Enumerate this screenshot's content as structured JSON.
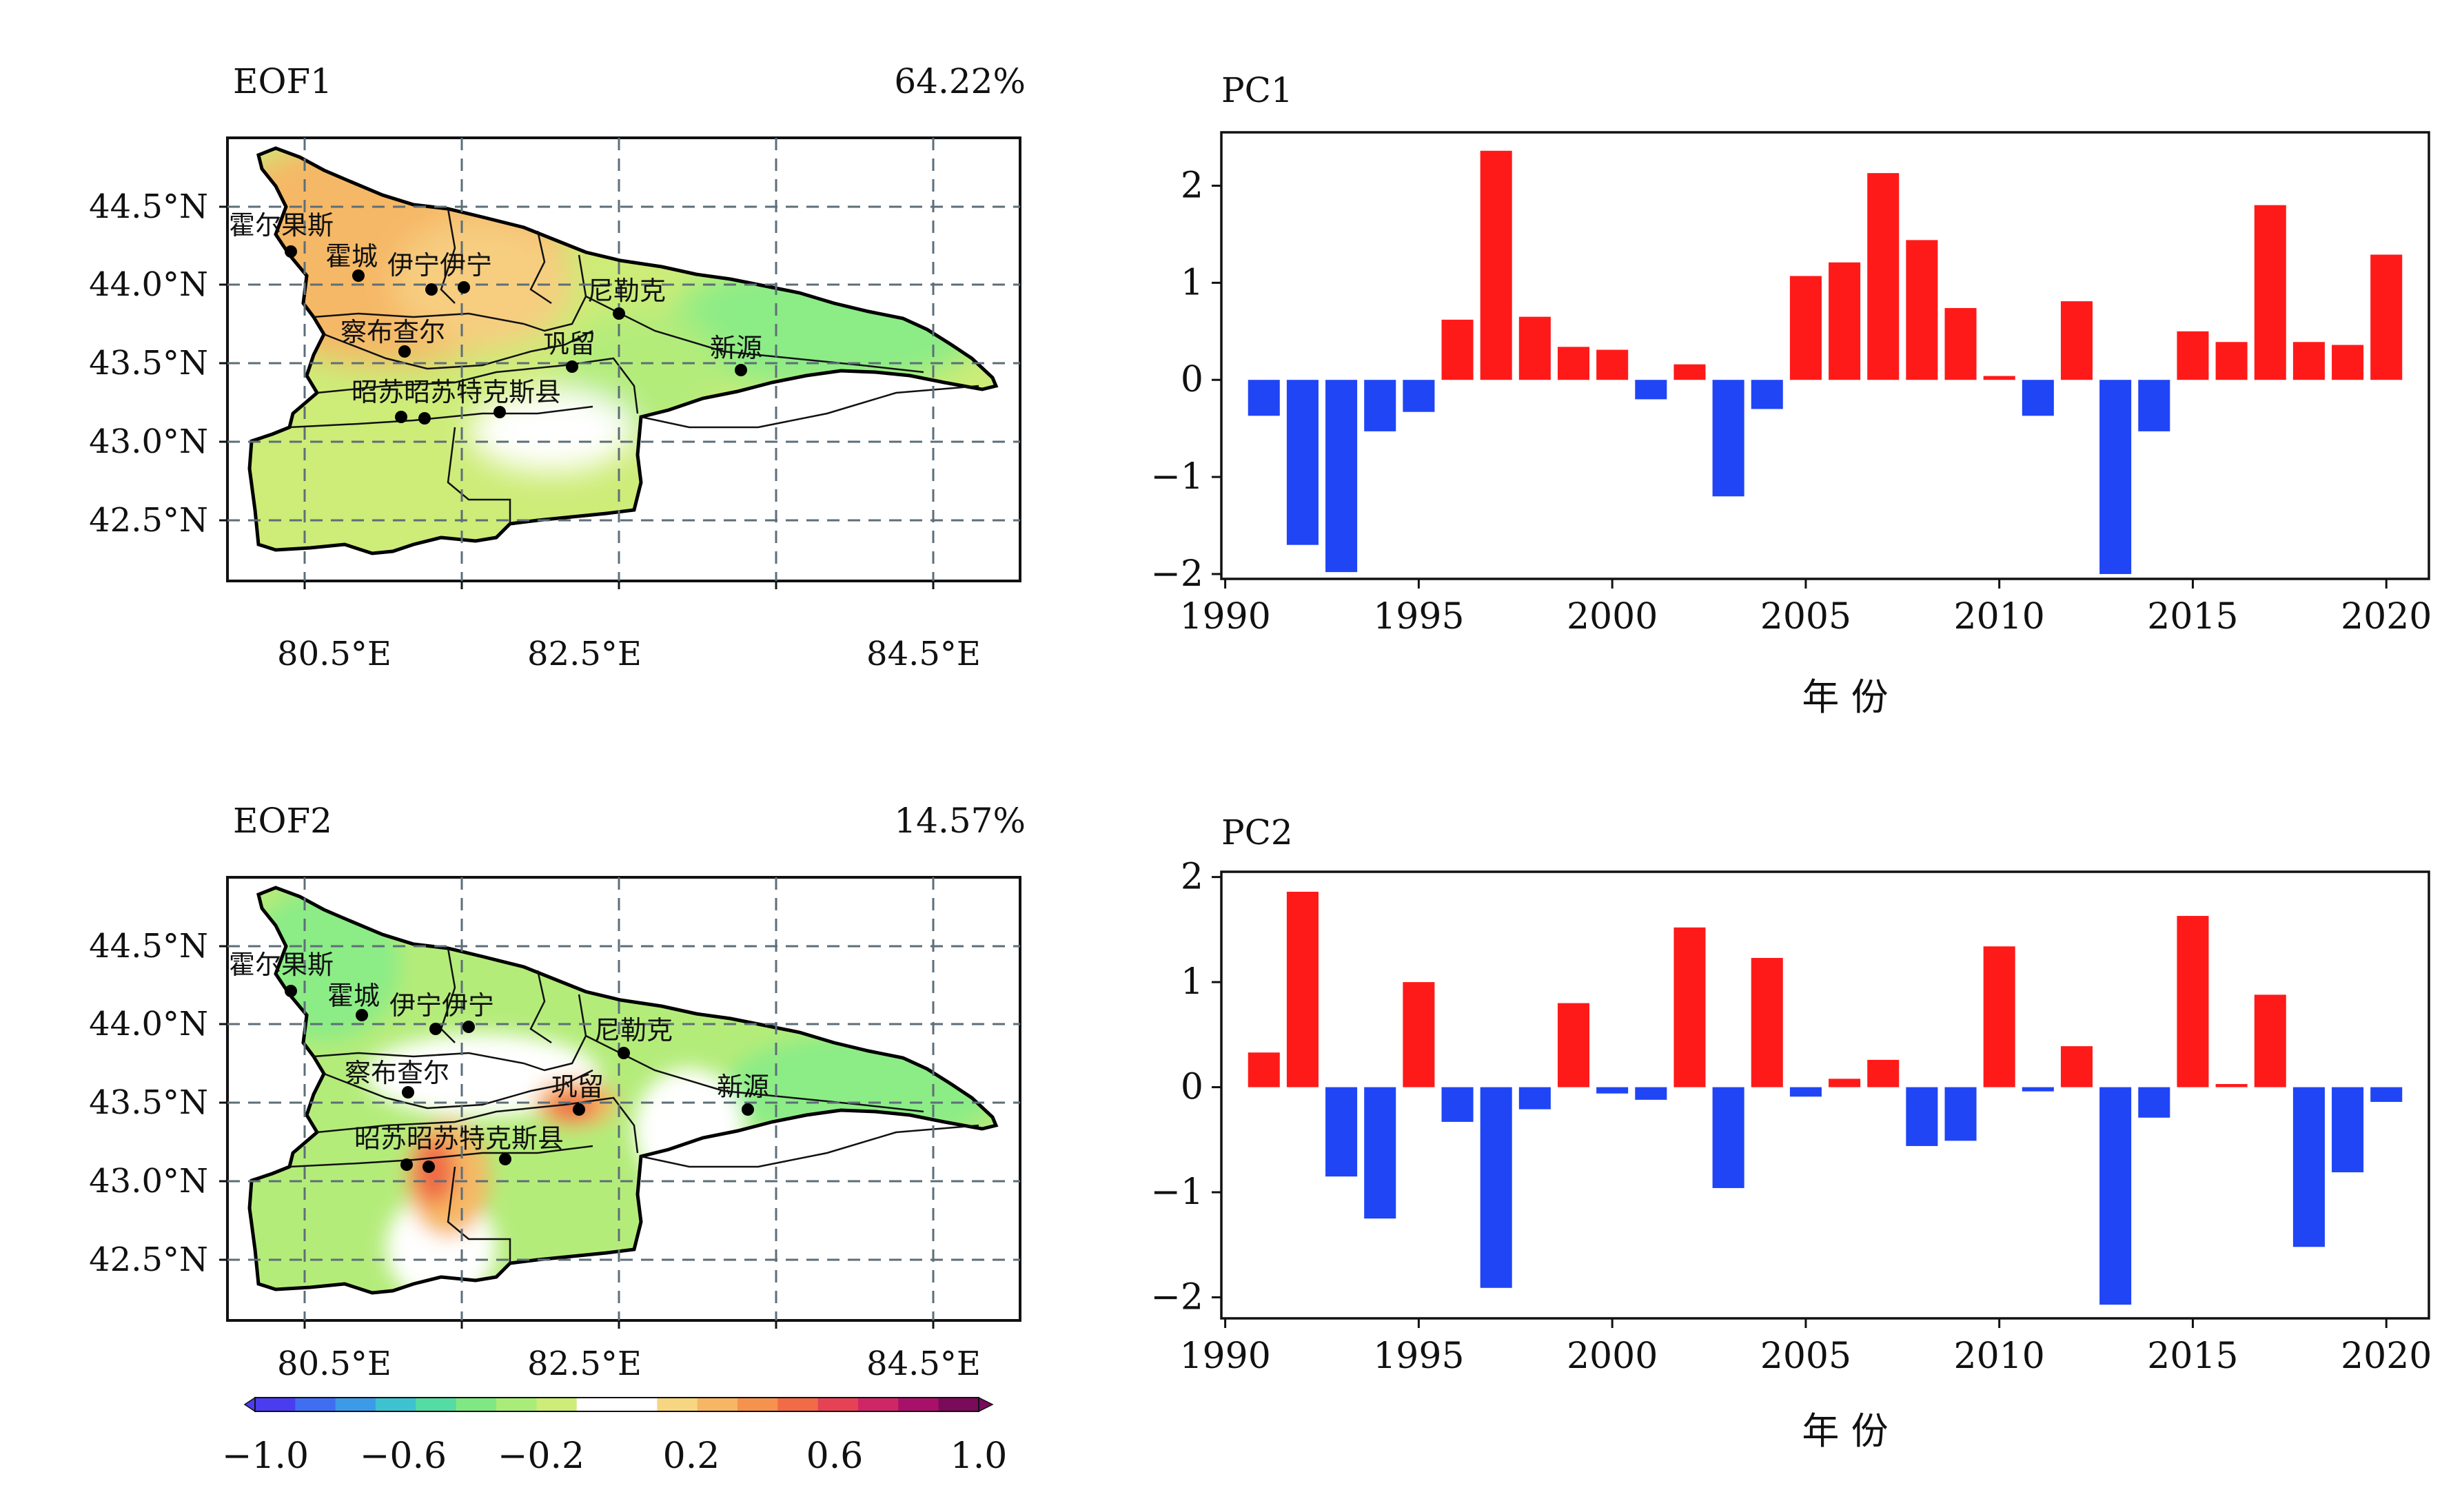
{
  "colorbar": {
    "tick_labels": [
      "−1.0",
      "−0.6",
      "−0.2",
      "0.2",
      "0.6",
      "1.0"
    ],
    "colors": [
      "#4a3df0",
      "#3f6ef2",
      "#3c9be8",
      "#3fc2cf",
      "#54dca4",
      "#7fe882",
      "#a9ec7a",
      "#cdec78",
      "#ffffff",
      "#ffffff",
      "#f6d680",
      "#f7b664",
      "#f5924d",
      "#f06b46",
      "#e54256",
      "#cf2667",
      "#a8106a",
      "#7a0a5a"
    ]
  },
  "maps": [
    {
      "title": "EOF1",
      "variance": "64.22%",
      "lat_ticks": [
        "44.5°N",
        "44.0°N",
        "43.5°N",
        "43.0°N",
        "42.5°N"
      ],
      "lon_ticks": [
        "80.5°E",
        "82.5°E",
        "84.5°E"
      ],
      "stations": [
        {
          "name": "霍尔果斯"
        },
        {
          "name": "霍城"
        },
        {
          "name": "伊宁伊宁"
        },
        {
          "name": "察布查尔"
        },
        {
          "name": "尼勒克"
        },
        {
          "name": "巩留"
        },
        {
          "name": "新源"
        },
        {
          "name": "昭苏昭苏特克斯县"
        }
      ],
      "fill_colors": {
        "west": "#f5b866",
        "north_mid": "#f7cd80",
        "east": "#8cec86",
        "east_mid": "#b4ec7a",
        "south": "#cdec78"
      }
    },
    {
      "title": "EOF2",
      "variance": "14.57%",
      "lat_ticks": [
        "44.5°N",
        "44.0°N",
        "43.5°N",
        "43.0°N",
        "42.5°N"
      ],
      "lon_ticks": [
        "80.5°E",
        "82.5°E",
        "84.5°E"
      ],
      "stations": [
        {
          "name": "霍尔果斯"
        },
        {
          "name": "霍城"
        },
        {
          "name": "伊宁伊宁"
        },
        {
          "name": "察布查尔"
        },
        {
          "name": "尼勒克"
        },
        {
          "name": "巩留"
        },
        {
          "name": "新源"
        },
        {
          "name": "昭苏昭苏特克斯县"
        }
      ],
      "fill_colors": {
        "base": "#b4ec7a",
        "green": "#8cec86",
        "hot": "#ef6a46",
        "warm": "#f6b865"
      }
    }
  ],
  "chart_data": [
    {
      "type": "bar",
      "title": "PC1",
      "xlabel": "年 份",
      "ylabel": "",
      "x": [
        1991,
        1992,
        1993,
        1994,
        1995,
        1996,
        1997,
        1998,
        1999,
        2000,
        2001,
        2002,
        2003,
        2004,
        2005,
        2006,
        2007,
        2008,
        2009,
        2010,
        2011,
        2012,
        2013,
        2014,
        2015,
        2016,
        2017,
        2018,
        2019,
        2020
      ],
      "values": [
        -0.37,
        -1.7,
        -1.98,
        -0.53,
        -0.33,
        0.62,
        2.36,
        0.65,
        0.34,
        0.31,
        -0.2,
        0.16,
        -1.2,
        -0.3,
        1.07,
        1.21,
        2.13,
        1.44,
        0.74,
        0.04,
        -0.37,
        0.81,
        -2.0,
        -0.53,
        0.5,
        0.39,
        1.8,
        0.39,
        0.36,
        1.29
      ],
      "xlim": [
        1989.9,
        2021.1
      ],
      "ylim": [
        -2.05,
        2.55
      ],
      "xticks": [
        1990,
        1995,
        2000,
        2005,
        2010,
        2015,
        2020
      ],
      "yticks": [
        2,
        1,
        0,
        -1,
        -2
      ],
      "ytick_labels": [
        "2",
        "1",
        "0",
        "−1",
        "−2"
      ],
      "positive_color": "#ff1a1a",
      "negative_color": "#1f45f5"
    },
    {
      "type": "bar",
      "title": "PC2",
      "xlabel": "年 份",
      "ylabel": "",
      "x": [
        1991,
        1992,
        1993,
        1994,
        1995,
        1996,
        1997,
        1998,
        1999,
        2000,
        2001,
        2002,
        2003,
        2004,
        2005,
        2006,
        2007,
        2008,
        2009,
        2010,
        2011,
        2012,
        2013,
        2014,
        2015,
        2016,
        2017,
        2018,
        2019,
        2020
      ],
      "values": [
        0.33,
        1.86,
        -0.85,
        -1.25,
        1.0,
        -0.33,
        -1.91,
        -0.21,
        0.8,
        -0.06,
        -0.12,
        1.52,
        -0.96,
        1.23,
        -0.09,
        0.08,
        0.26,
        -0.56,
        -0.51,
        1.34,
        -0.04,
        0.39,
        -2.07,
        -0.29,
        1.63,
        0.03,
        0.88,
        -1.52,
        -0.81,
        -0.14
      ],
      "xlim": [
        1989.9,
        2021.1
      ],
      "ylim": [
        -2.2,
        2.05
      ],
      "xticks": [
        1990,
        1995,
        2000,
        2005,
        2010,
        2015,
        2020
      ],
      "yticks": [
        2,
        1,
        0,
        -1,
        -2
      ],
      "ytick_labels": [
        "2",
        "1",
        "0",
        "−1",
        "−2"
      ],
      "positive_color": "#ff1a1a",
      "negative_color": "#1f45f5"
    }
  ]
}
